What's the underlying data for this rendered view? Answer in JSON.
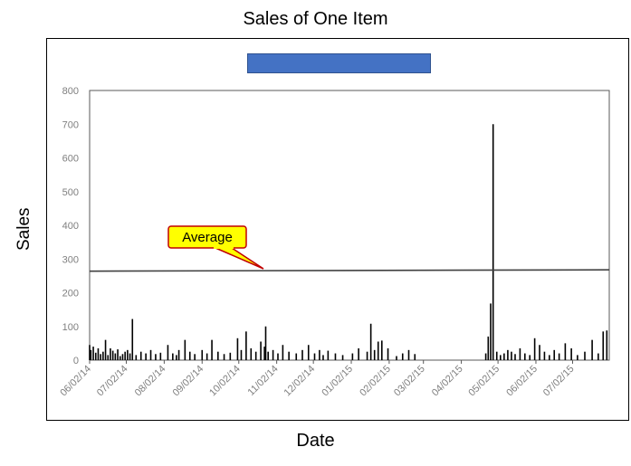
{
  "chart_data": {
    "type": "bar",
    "title": "Sales of One Item",
    "xlabel": "Date",
    "ylabel": "Sales",
    "ylim": [
      0,
      800
    ],
    "yticks": [
      "0",
      "100",
      "200",
      "300",
      "400",
      "500",
      "600",
      "700",
      "800"
    ],
    "xticks": [
      "06/02/14",
      "07/02/14",
      "08/02/14",
      "09/02/14",
      "10/02/14",
      "11/02/14",
      "12/02/14",
      "01/02/15",
      "02/02/15",
      "03/02/15",
      "04/02/15",
      "05/02/15",
      "06/02/15",
      "07/02/15"
    ],
    "x_range": [
      "2014-06-02",
      "2015-08-01"
    ],
    "bar_color": "#000000",
    "legend_swatch_color": "#4472c4",
    "legend_placement": "top-center",
    "grid": false,
    "average": {
      "label": "Average",
      "values": [
        264,
        268
      ],
      "callout_fill": "#ffff00",
      "callout_border": "#c00000"
    },
    "series": [
      {
        "dates": [
          "2014-06-02",
          "2014-06-03",
          "2014-06-05",
          "2014-06-07",
          "2014-06-09",
          "2014-06-11",
          "2014-06-13",
          "2014-06-15",
          "2014-06-17",
          "2014-06-19",
          "2014-06-21",
          "2014-06-23",
          "2014-06-25",
          "2014-06-27",
          "2014-06-29",
          "2014-07-01",
          "2014-07-03",
          "2014-07-05",
          "2014-07-07",
          "2014-07-10",
          "2014-07-14",
          "2014-07-18",
          "2014-07-22",
          "2014-07-26",
          "2014-07-30",
          "2014-08-05",
          "2014-08-09",
          "2014-08-12",
          "2014-08-14",
          "2014-08-19",
          "2014-08-23",
          "2014-08-27",
          "2014-09-02",
          "2014-09-06",
          "2014-09-10",
          "2014-09-15",
          "2014-09-20",
          "2014-09-25",
          "2014-10-01",
          "2014-10-04",
          "2014-10-08",
          "2014-10-12",
          "2014-10-16",
          "2014-10-20",
          "2014-10-23",
          "2014-10-24",
          "2014-10-26",
          "2014-10-30",
          "2014-11-03",
          "2014-11-07",
          "2014-11-12",
          "2014-11-18",
          "2014-11-23",
          "2014-11-28",
          "2014-12-03",
          "2014-12-07",
          "2014-12-10",
          "2014-12-14",
          "2014-12-20",
          "2014-12-26",
          "2015-01-03",
          "2015-01-08",
          "2015-01-15",
          "2015-01-18",
          "2015-01-21",
          "2015-01-24",
          "2015-01-27",
          "2015-02-01",
          "2015-02-08",
          "2015-02-13",
          "2015-02-18",
          "2015-02-23",
          "2015-04-22",
          "2015-04-24",
          "2015-04-26",
          "2015-04-28",
          "2015-05-01",
          "2015-05-04",
          "2015-05-07",
          "2015-05-10",
          "2015-05-13",
          "2015-05-16",
          "2015-05-20",
          "2015-05-24",
          "2015-05-28",
          "2015-06-01",
          "2015-06-05",
          "2015-06-09",
          "2015-06-13",
          "2015-06-17",
          "2015-06-21",
          "2015-06-26",
          "2015-07-01",
          "2015-07-06",
          "2015-07-12",
          "2015-07-18",
          "2015-07-23",
          "2015-07-27",
          "2015-07-30"
        ],
        "values": [
          45,
          30,
          40,
          22,
          35,
          18,
          25,
          60,
          15,
          35,
          28,
          20,
          32,
          12,
          18,
          25,
          30,
          20,
          122,
          15,
          25,
          20,
          30,
          18,
          22,
          45,
          20,
          15,
          30,
          60,
          25,
          18,
          30,
          20,
          60,
          25,
          18,
          22,
          65,
          30,
          85,
          35,
          25,
          55,
          40,
          100,
          25,
          30,
          20,
          45,
          25,
          20,
          30,
          45,
          20,
          30,
          15,
          28,
          20,
          15,
          20,
          35,
          25,
          108,
          30,
          55,
          58,
          35,
          12,
          20,
          30,
          18,
          20,
          70,
          168,
          700,
          25,
          15,
          20,
          30,
          25,
          18,
          35,
          20,
          15,
          65,
          45,
          25,
          15,
          30,
          20,
          50,
          35,
          15,
          25,
          60,
          20,
          85,
          88
        ]
      }
    ]
  }
}
